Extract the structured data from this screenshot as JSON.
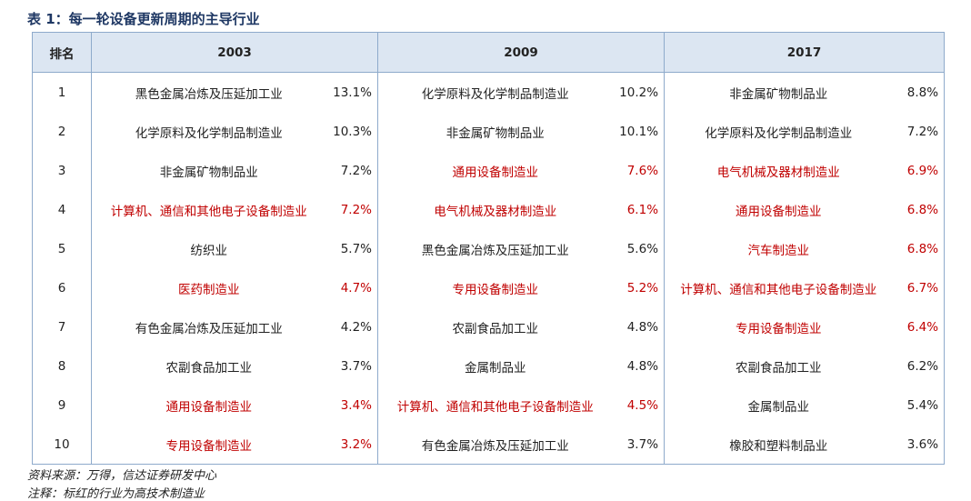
{
  "title": "表 1：每一轮设备更新周期的主导行业",
  "table": {
    "header": [
      "排名",
      "2003",
      "2009",
      "2017"
    ],
    "rows": [
      {
        "rank": "1",
        "cells": [
          {
            "name": "黑色金属冶炼及压延加工业",
            "value": "13.1%",
            "red": false
          },
          {
            "name": "化学原料及化学制品制造业",
            "value": "10.2%",
            "red": false
          },
          {
            "name": "非金属矿物制品业",
            "value": "8.8%",
            "red": false
          }
        ]
      },
      {
        "rank": "2",
        "cells": [
          {
            "name": "化学原料及化学制品制造业",
            "value": "10.3%",
            "red": false
          },
          {
            "name": "非金属矿物制品业",
            "value": "10.1%",
            "red": false
          },
          {
            "name": "化学原料及化学制品制造业",
            "value": "7.2%",
            "red": false
          }
        ]
      },
      {
        "rank": "3",
        "cells": [
          {
            "name": "非金属矿物制品业",
            "value": "7.2%",
            "red": false
          },
          {
            "name": "通用设备制造业",
            "value": "7.6%",
            "red": true
          },
          {
            "name": "电气机械及器材制造业",
            "value": "6.9%",
            "red": true
          }
        ]
      },
      {
        "rank": "4",
        "cells": [
          {
            "name": "计算机、通信和其他电子设备制造业",
            "value": "7.2%",
            "red": true
          },
          {
            "name": "电气机械及器材制造业",
            "value": "6.1%",
            "red": true
          },
          {
            "name": "通用设备制造业",
            "value": "6.8%",
            "red": true
          }
        ]
      },
      {
        "rank": "5",
        "cells": [
          {
            "name": "纺织业",
            "value": "5.7%",
            "red": false
          },
          {
            "name": "黑色金属冶炼及压延加工业",
            "value": "5.6%",
            "red": false
          },
          {
            "name": "汽车制造业",
            "value": "6.8%",
            "red": true
          }
        ]
      },
      {
        "rank": "6",
        "cells": [
          {
            "name": "医药制造业",
            "value": "4.7%",
            "red": true
          },
          {
            "name": "专用设备制造业",
            "value": "5.2%",
            "red": true
          },
          {
            "name": "计算机、通信和其他电子设备制造业",
            "value": "6.7%",
            "red": true
          }
        ]
      },
      {
        "rank": "7",
        "cells": [
          {
            "name": "有色金属冶炼及压延加工业",
            "value": "4.2%",
            "red": false
          },
          {
            "name": "农副食品加工业",
            "value": "4.8%",
            "red": false
          },
          {
            "name": "专用设备制造业",
            "value": "6.4%",
            "red": true
          }
        ]
      },
      {
        "rank": "8",
        "cells": [
          {
            "name": "农副食品加工业",
            "value": "3.7%",
            "red": false
          },
          {
            "name": "金属制品业",
            "value": "4.8%",
            "red": false
          },
          {
            "name": "农副食品加工业",
            "value": "6.2%",
            "red": false
          }
        ]
      },
      {
        "rank": "9",
        "cells": [
          {
            "name": "通用设备制造业",
            "value": "3.4%",
            "red": true
          },
          {
            "name": "计算机、通信和其他电子设备制造业",
            "value": "4.5%",
            "red": true
          },
          {
            "name": "金属制品业",
            "value": "5.4%",
            "red": false
          }
        ]
      },
      {
        "rank": "10",
        "cells": [
          {
            "name": "专用设备制造业",
            "value": "3.2%",
            "red": true
          },
          {
            "name": "有色金属冶炼及压延加工业",
            "value": "3.7%",
            "red": false
          },
          {
            "name": "橡胶和塑料制品业",
            "value": "3.6%",
            "red": false
          }
        ]
      }
    ]
  },
  "notes": [
    "资料来源：万得，信达证券研发中心",
    "注释：标红的行业为高技术制造业"
  ]
}
